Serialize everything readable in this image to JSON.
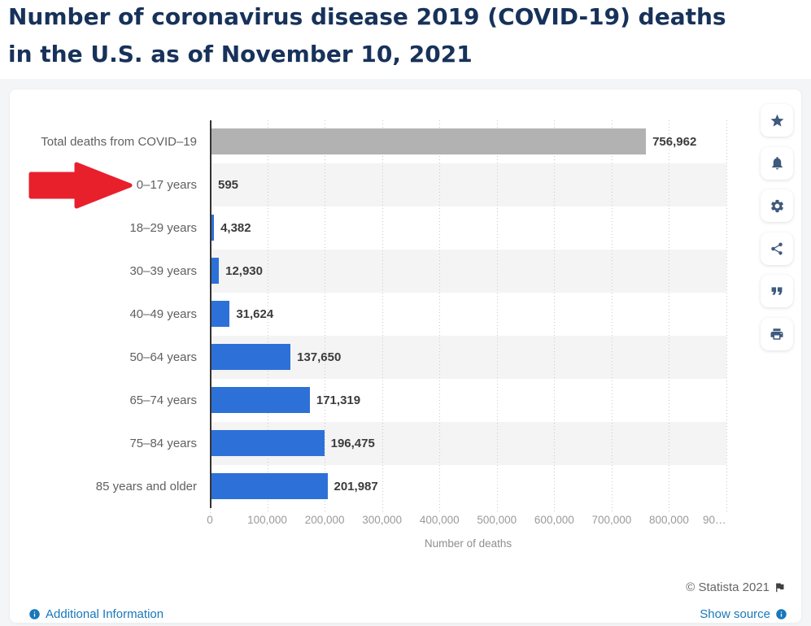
{
  "title": {
    "line1": "Number of coronavirus disease 2019 (COVID-19) deaths",
    "line2": "in the U.S. as of November 10, 2021"
  },
  "chart_data": {
    "type": "bar",
    "orientation": "horizontal",
    "categories": [
      "Total deaths from COVID–19",
      "0–17 years",
      "18–29 years",
      "30–39 years",
      "40–49 years",
      "50–64 years",
      "65–74 years",
      "75–84 years",
      "85 years and older"
    ],
    "values": [
      756962,
      595,
      4382,
      12930,
      31624,
      137650,
      171319,
      196475,
      201987
    ],
    "value_labels": [
      "756,962",
      "595",
      "4,382",
      "12,930",
      "31,624",
      "137,650",
      "171,319",
      "196,475",
      "201,987"
    ],
    "bar_colors": [
      "#b2b2b2",
      "#2d71d8",
      "#2d71d8",
      "#2d71d8",
      "#2d71d8",
      "#2d71d8",
      "#2d71d8",
      "#2d71d8",
      "#2d71d8"
    ],
    "xlabel": "Number of deaths",
    "xlim": [
      0,
      900000
    ],
    "ticks": [
      {
        "value": 0,
        "label": "0"
      },
      {
        "value": 100000,
        "label": "100,000"
      },
      {
        "value": 200000,
        "label": "200,000"
      },
      {
        "value": 300000,
        "label": "300,000"
      },
      {
        "value": 400000,
        "label": "400,000"
      },
      {
        "value": 500000,
        "label": "500,000"
      },
      {
        "value": 600000,
        "label": "600,000"
      },
      {
        "value": 700000,
        "label": "700,000"
      },
      {
        "value": 800000,
        "label": "800,000"
      },
      {
        "value": 900000,
        "label": "90…"
      }
    ],
    "grid": "vertical-dotted",
    "legend": "none",
    "annotation": {
      "type": "arrow",
      "points_to": "0–17 years",
      "color": "#e8202c"
    }
  },
  "toolbar": {
    "icons": [
      "favorite-star",
      "alerts-bell",
      "settings-gear",
      "share",
      "cite-quote",
      "print"
    ]
  },
  "footer": {
    "copyright": "© Statista 2021",
    "additional_info_label": "Additional Information",
    "show_source_label": "Show source"
  }
}
